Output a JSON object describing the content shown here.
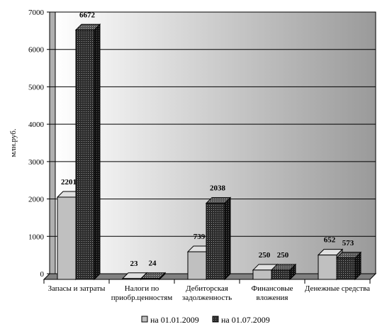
{
  "chart_data": {
    "type": "bar",
    "ylabel": "млн.руб.",
    "ylim": [
      0,
      7000
    ],
    "yticks": [
      0,
      1000,
      2000,
      3000,
      4000,
      5000,
      6000,
      7000
    ],
    "categories": [
      [
        "Запасы и затраты"
      ],
      [
        "Налоги по",
        "приобр.ценностям"
      ],
      [
        "Дебиторская",
        "задолженность"
      ],
      [
        "Финансовые",
        "вложения"
      ],
      [
        "Денежные средства"
      ]
    ],
    "series": [
      {
        "name": "на 01.01.2009",
        "values": [
          2201,
          23,
          739,
          250,
          652
        ],
        "color": "#c0c0c0"
      },
      {
        "name": "на 01.07.2009",
        "values": [
          6672,
          24,
          2038,
          250,
          573
        ],
        "color": "#333333"
      }
    ],
    "legend_position": "bottom",
    "grid": true
  }
}
